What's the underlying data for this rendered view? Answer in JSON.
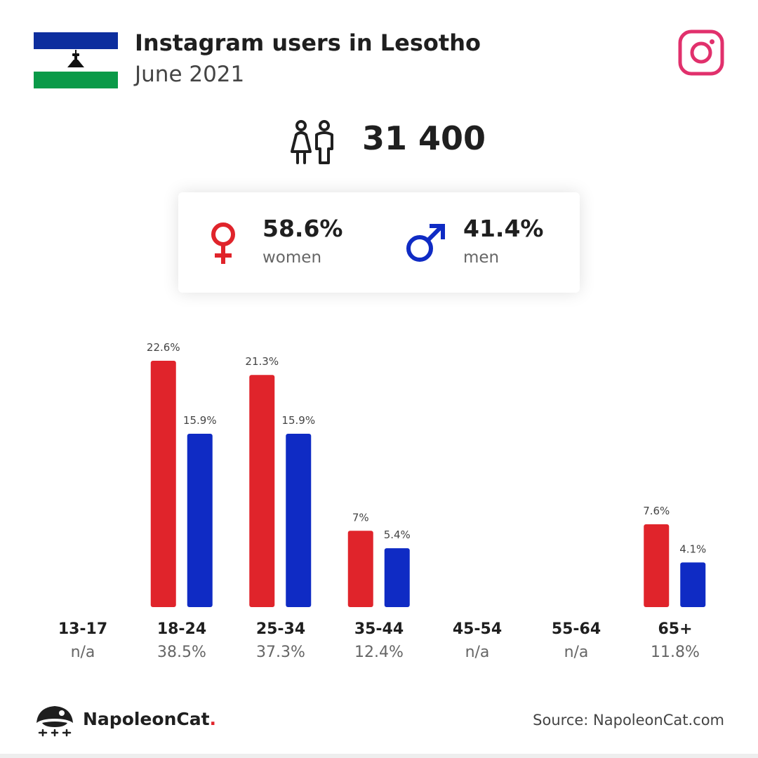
{
  "header": {
    "title": "Instagram users in Lesotho",
    "subtitle": "June 2021"
  },
  "flag": {
    "colors": {
      "top": "#0d2e9e",
      "middle": "#ffffff",
      "bottom": "#0a9a48",
      "emblem": "#111111"
    },
    "icon": "lesotho-flag"
  },
  "brand_icon": {
    "name": "instagram-icon",
    "color": "#e1306c"
  },
  "summary": {
    "total": "31 400",
    "icon": "users-icon"
  },
  "gender": {
    "women": {
      "percent": "58.6%",
      "label": "women",
      "color": "#e0242b",
      "icon": "female-icon"
    },
    "men": {
      "percent": "41.4%",
      "label": "men",
      "color": "#0f2bc4",
      "icon": "male-icon"
    }
  },
  "colors": {
    "women": "#e0242b",
    "men": "#0f2bc4"
  },
  "chart_data": {
    "type": "bar",
    "categories": [
      "13-17",
      "18-24",
      "25-34",
      "35-44",
      "45-54",
      "55-64",
      "65+"
    ],
    "series": [
      {
        "name": "women",
        "values": [
          null,
          22.6,
          21.3,
          7,
          null,
          null,
          7.6
        ],
        "labels": [
          "",
          "22.6%",
          "21.3%",
          "7%",
          "",
          "",
          "7.6%"
        ]
      },
      {
        "name": "men",
        "values": [
          null,
          15.9,
          15.9,
          5.4,
          null,
          null,
          4.1
        ],
        "labels": [
          "",
          "15.9%",
          "15.9%",
          "5.4%",
          "",
          "",
          "4.1%"
        ]
      }
    ],
    "category_totals": [
      "n/a",
      "38.5%",
      "37.3%",
      "12.4%",
      "n/a",
      "n/a",
      "11.8%"
    ],
    "ylim": [
      0,
      22.6
    ],
    "grid": false
  },
  "footer": {
    "brand_name": "NapoleonCat",
    "brand_dot": ".",
    "source": "Source: NapoleonCat.com"
  }
}
